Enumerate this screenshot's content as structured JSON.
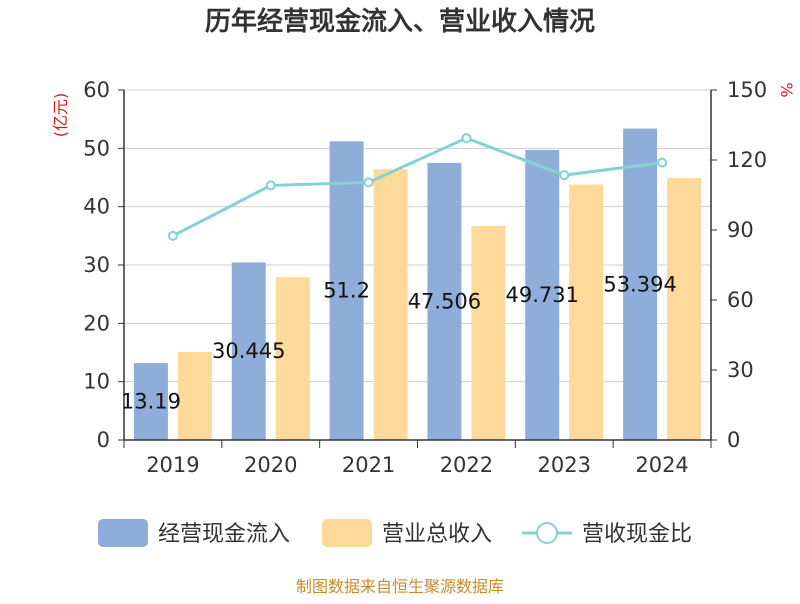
{
  "chart_data": {
    "type": "bar",
    "title": "历年经营现金流入、营业收入情况",
    "categories": [
      "2019",
      "2020",
      "2021",
      "2022",
      "2023",
      "2024"
    ],
    "series": [
      {
        "name": "经营现金流入",
        "type": "bar",
        "axis": "left",
        "color": "#8eadd9",
        "values": [
          13.19,
          30.445,
          51.2,
          47.506,
          49.731,
          53.394
        ],
        "labels": [
          "13.19",
          "30.445",
          "51.2",
          "47.506",
          "49.731",
          "53.394"
        ]
      },
      {
        "name": "营业总收入",
        "type": "bar",
        "axis": "left",
        "color": "#fdd99a",
        "values": [
          15.1,
          27.9,
          46.4,
          36.7,
          43.8,
          44.9
        ]
      },
      {
        "name": "营收现金比",
        "type": "line",
        "axis": "right",
        "color": "#86d1d3",
        "values": [
          87.5,
          109.1,
          110.4,
          129.4,
          113.5,
          118.9
        ]
      }
    ],
    "yleft": {
      "label": "(亿元)",
      "ylim": [
        0,
        60
      ],
      "ticks": [
        "0",
        "10",
        "20",
        "30",
        "40",
        "50",
        "60"
      ]
    },
    "yright": {
      "label": "%",
      "ylim": [
        0,
        150
      ],
      "ticks": [
        "0",
        "30",
        "60",
        "90",
        "120",
        "150"
      ]
    },
    "xlabel": "",
    "grid": true,
    "legend": "bottom"
  },
  "source": "制图数据来自恒生聚源数据库"
}
